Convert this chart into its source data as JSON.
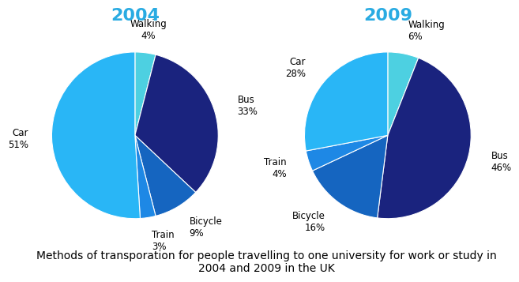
{
  "title_2004": "2004",
  "title_2009": "2009",
  "title_color": "#29ABE2",
  "title_fontsize": 16,
  "caption": "Methods of transporation for people travelling to one university for work or study in\n2004 and 2009 in the UK",
  "caption_fontsize": 10,
  "labels": [
    "Walking",
    "Bus",
    "Bicycle",
    "Train",
    "Car"
  ],
  "values_2004": [
    4,
    33,
    9,
    3,
    51
  ],
  "values_2009": [
    6,
    46,
    16,
    4,
    28
  ],
  "colors": {
    "Walking": "#4DD0E1",
    "Bus": "#1A237E",
    "Bicycle": "#1565C0",
    "Train": "#1E88E5",
    "Car": "#29B6F6"
  },
  "startangle_2004": 90,
  "startangle_2009": 90,
  "label_fontsize": 8.5,
  "background_color": "#FFFFFF"
}
